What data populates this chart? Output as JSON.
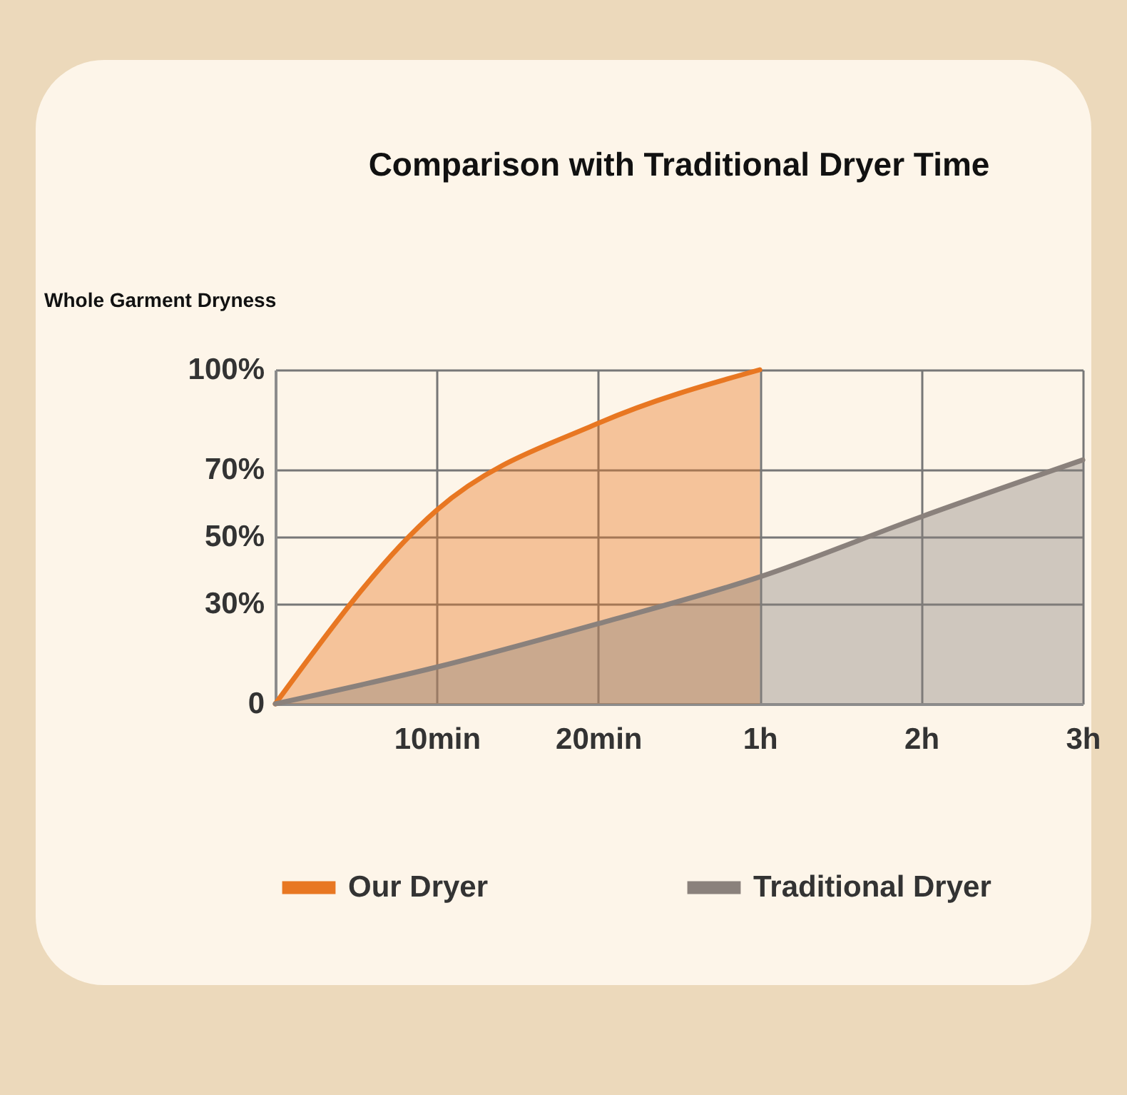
{
  "chart_data": {
    "type": "area",
    "title": "Comparison with Traditional Dryer Time",
    "ylabel": "Whole Garment Dryness",
    "categories": [
      null,
      "10min",
      "20min",
      "1h",
      "2h",
      "3h"
    ],
    "ylim": [
      0,
      100
    ],
    "yticks": [
      {
        "value": 0,
        "label": "0"
      },
      {
        "value": 30,
        "label": "30%"
      },
      {
        "value": 50,
        "label": "50%"
      },
      {
        "value": 70,
        "label": "70%"
      },
      {
        "value": 100,
        "label": "100%"
      }
    ],
    "grid": true,
    "legend": "bottom",
    "series": [
      {
        "name": "Our Dryer",
        "color": "#e87722",
        "values": [
          0,
          58,
          84,
          100,
          null,
          null
        ]
      },
      {
        "name": "Traditional Dryer",
        "color": "#8a817c",
        "values": [
          0,
          11,
          24,
          38,
          56,
          73
        ]
      }
    ]
  }
}
